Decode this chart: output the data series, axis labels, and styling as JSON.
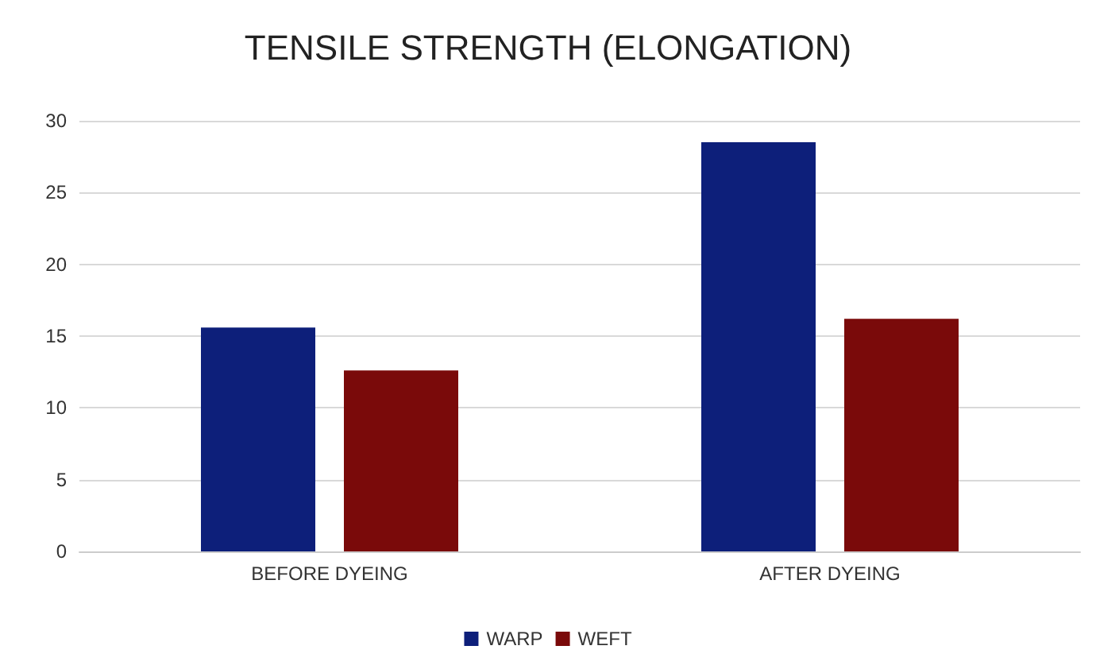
{
  "chart_data": {
    "type": "bar",
    "title": "TENSILE STRENGTH (ELONGATION)",
    "categories": [
      "BEFORE DYEING",
      "AFTER DYEING"
    ],
    "series": [
      {
        "name": "WARP",
        "color": "#0d1f7a",
        "values": [
          15.6,
          28.5
        ]
      },
      {
        "name": "WEFT",
        "color": "#7a0a0a",
        "values": [
          12.6,
          16.2
        ]
      }
    ],
    "ylim": [
      0,
      30
    ],
    "yticks": [
      0,
      5,
      10,
      15,
      20,
      25,
      30
    ],
    "grid": "y",
    "legend": "bottom"
  }
}
